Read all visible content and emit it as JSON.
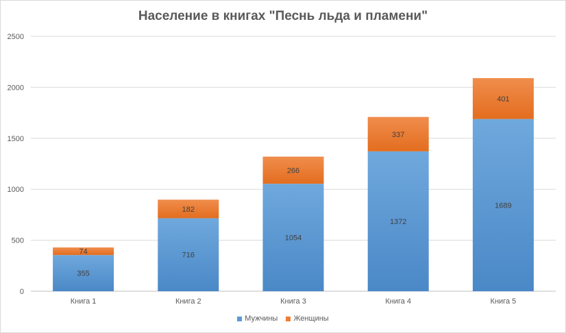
{
  "chart_data": {
    "type": "bar",
    "stacked": true,
    "title": "Население в книгах \"Песнь льда и пламени\"",
    "xlabel": "",
    "ylabel": "",
    "categories": [
      "Книга 1",
      "Книга 2",
      "Книга 3",
      "Книга 4",
      "Книга 5"
    ],
    "series": [
      {
        "name": "Мужчины",
        "color": "#5b9bd5",
        "values": [
          355,
          716,
          1054,
          1372,
          1689
        ]
      },
      {
        "name": "Женщины",
        "color": "#ed7d31",
        "values": [
          74,
          182,
          266,
          337,
          401
        ]
      }
    ],
    "ylim": [
      0,
      2500
    ],
    "yticks": [
      "0",
      "500",
      "1000",
      "1500",
      "2000",
      "2500"
    ],
    "grid": true,
    "legend_position": "bottom"
  }
}
